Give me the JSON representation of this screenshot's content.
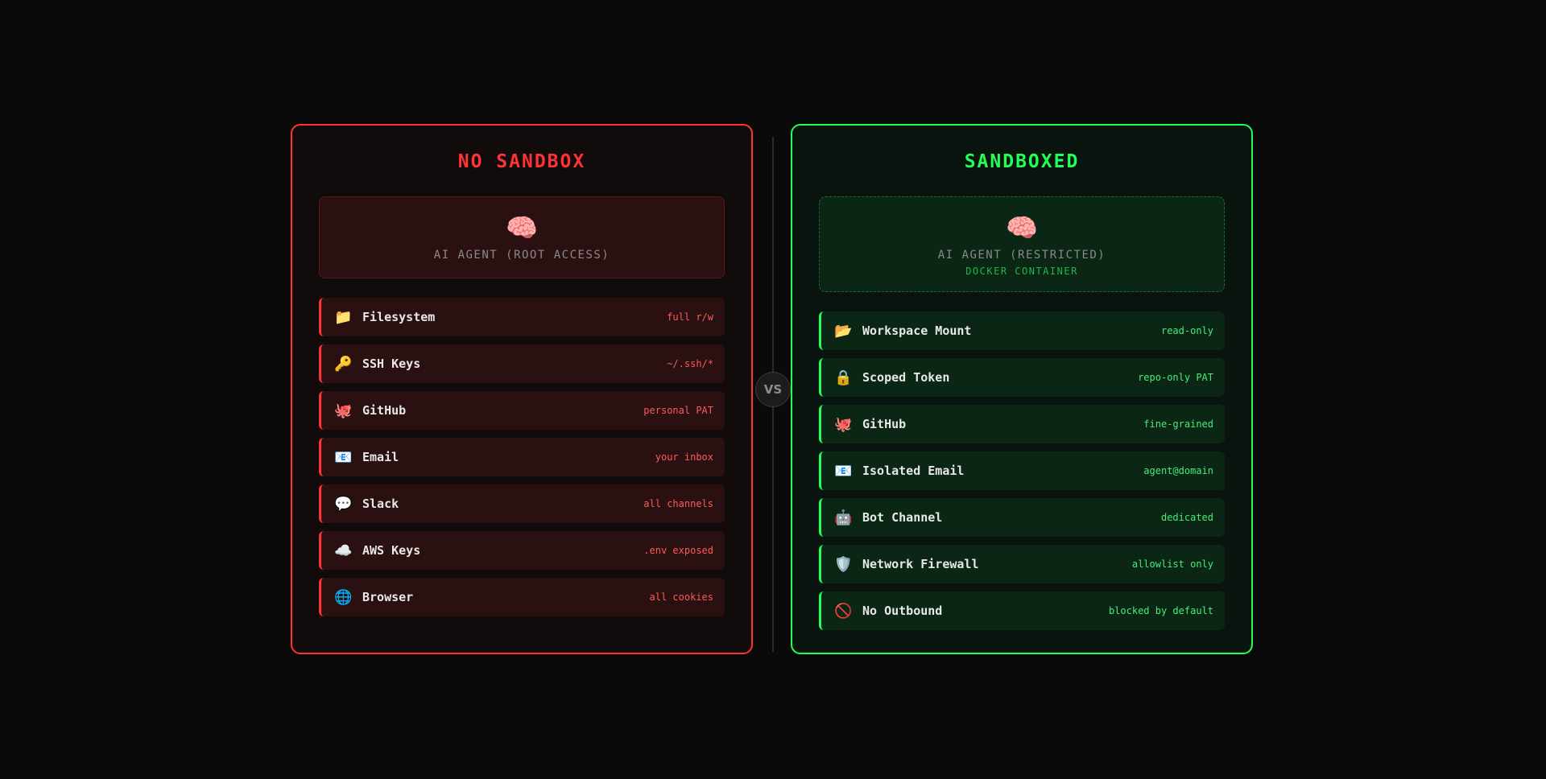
{
  "left": {
    "title": "NO SANDBOX",
    "agent": {
      "icon": "🧠",
      "label": "AI AGENT (ROOT ACCESS)"
    },
    "items": [
      {
        "icon": "📁",
        "label": "Filesystem",
        "value": "full r/w"
      },
      {
        "icon": "🔑",
        "label": "SSH Keys",
        "value": "~/.ssh/*"
      },
      {
        "icon": "🐙",
        "label": "GitHub",
        "value": "personal PAT"
      },
      {
        "icon": "📧",
        "label": "Email",
        "value": "your inbox"
      },
      {
        "icon": "💬",
        "label": "Slack",
        "value": "all channels"
      },
      {
        "icon": "☁️",
        "label": "AWS Keys",
        "value": ".env exposed"
      },
      {
        "icon": "🌐",
        "label": "Browser",
        "value": "all cookies"
      }
    ],
    "accent": "#ff3333"
  },
  "divider": {
    "label": "VS"
  },
  "right": {
    "title": "SANDBOXED",
    "agent": {
      "icon": "🧠",
      "label": "AI AGENT (RESTRICTED)",
      "sublabel": "DOCKER CONTAINER"
    },
    "items": [
      {
        "icon": "📂",
        "label": "Workspace Mount",
        "value": "read-only"
      },
      {
        "icon": "🔒",
        "label": "Scoped Token",
        "value": "repo-only PAT"
      },
      {
        "icon": "🐙",
        "label": "GitHub",
        "value": "fine-grained"
      },
      {
        "icon": "📧",
        "label": "Isolated Email",
        "value": "agent@domain"
      },
      {
        "icon": "🤖",
        "label": "Bot Channel",
        "value": "dedicated"
      },
      {
        "icon": "🛡️",
        "label": "Network Firewall",
        "value": "allowlist only"
      },
      {
        "icon": "🚫",
        "label": "No Outbound",
        "value": "blocked by default"
      }
    ],
    "accent": "#22ff55"
  }
}
